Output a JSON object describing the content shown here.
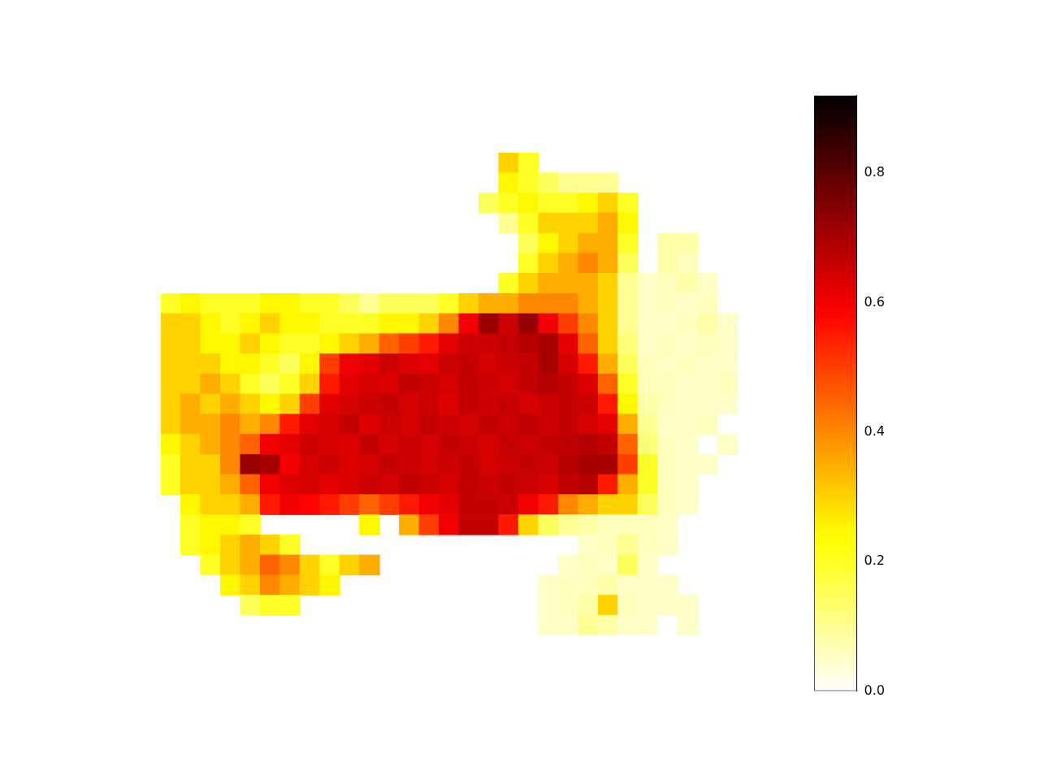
{
  "chart_data": {
    "type": "heatmap",
    "cells": [
      [
        null,
        null,
        null,
        null,
        null,
        null,
        null,
        null,
        null,
        null,
        null,
        null,
        null,
        null,
        null,
        null,
        null,
        0.3,
        0.2,
        null,
        null,
        null,
        null,
        null,
        null,
        null,
        null,
        null,
        null,
        null
      ],
      [
        null,
        null,
        null,
        null,
        null,
        null,
        null,
        null,
        null,
        null,
        null,
        null,
        null,
        null,
        null,
        null,
        null,
        0.25,
        0.2,
        0.15,
        0.1,
        0.1,
        0.1,
        null,
        null,
        null,
        null,
        null,
        null,
        null
      ],
      [
        null,
        null,
        null,
        null,
        null,
        null,
        null,
        null,
        null,
        null,
        null,
        null,
        null,
        null,
        null,
        null,
        0.15,
        0.2,
        0.25,
        0.2,
        0.2,
        0.25,
        0.3,
        0.2,
        null,
        null,
        null,
        null,
        null,
        null
      ],
      [
        null,
        null,
        null,
        null,
        null,
        null,
        null,
        null,
        null,
        null,
        null,
        null,
        null,
        null,
        null,
        null,
        null,
        0.1,
        0.2,
        0.3,
        0.3,
        0.3,
        0.35,
        0.25,
        null,
        null,
        null,
        null,
        null,
        null
      ],
      [
        null,
        null,
        null,
        null,
        null,
        null,
        null,
        null,
        null,
        null,
        null,
        null,
        null,
        null,
        null,
        null,
        null,
        null,
        0.15,
        0.25,
        0.3,
        0.35,
        0.35,
        0.2,
        null,
        0.08,
        0.08,
        null,
        null,
        null
      ],
      [
        null,
        null,
        null,
        null,
        null,
        null,
        null,
        null,
        null,
        null,
        null,
        null,
        null,
        null,
        null,
        null,
        null,
        null,
        0.2,
        0.3,
        0.35,
        0.4,
        0.35,
        0.15,
        null,
        0.08,
        0.06,
        null,
        null,
        null
      ],
      [
        null,
        null,
        null,
        null,
        null,
        null,
        null,
        null,
        null,
        null,
        null,
        null,
        null,
        null,
        null,
        null,
        null,
        0.2,
        0.3,
        0.35,
        0.35,
        0.35,
        0.3,
        0.1,
        0.05,
        0.06,
        0.08,
        0.05,
        null,
        null
      ],
      [
        0.2,
        0.25,
        0.2,
        0.2,
        0.2,
        0.25,
        0.25,
        0.2,
        0.2,
        0.15,
        0.1,
        0.15,
        0.15,
        0.15,
        0.2,
        0.3,
        0.35,
        0.35,
        0.4,
        0.4,
        0.4,
        0.35,
        0.3,
        0.1,
        0.05,
        0.06,
        0.05,
        0.06,
        null,
        null
      ],
      [
        0.3,
        0.3,
        0.25,
        0.2,
        0.25,
        0.3,
        0.25,
        0.25,
        0.2,
        0.2,
        0.2,
        0.25,
        0.25,
        0.3,
        0.4,
        0.6,
        0.72,
        0.65,
        0.72,
        0.6,
        0.5,
        0.4,
        0.3,
        0.1,
        0.05,
        0.05,
        0.06,
        0.08,
        0.05,
        null
      ],
      [
        0.3,
        0.3,
        0.25,
        0.25,
        0.3,
        0.25,
        0.2,
        0.2,
        0.25,
        0.3,
        0.35,
        0.45,
        0.5,
        0.55,
        0.62,
        0.65,
        0.65,
        0.66,
        0.68,
        0.7,
        0.62,
        0.45,
        0.3,
        0.12,
        0.05,
        0.06,
        0.05,
        0.06,
        0.05,
        null
      ],
      [
        0.3,
        0.3,
        0.3,
        0.25,
        0.25,
        0.2,
        0.15,
        0.25,
        0.5,
        0.6,
        0.62,
        0.65,
        0.63,
        0.62,
        0.65,
        0.66,
        0.64,
        0.65,
        0.66,
        0.7,
        0.64,
        0.55,
        0.35,
        0.15,
        0.06,
        0.05,
        0.06,
        0.05,
        0.05,
        null
      ],
      [
        0.3,
        0.3,
        0.35,
        0.3,
        0.2,
        0.15,
        0.2,
        0.3,
        0.55,
        0.62,
        0.64,
        0.63,
        0.66,
        0.65,
        0.64,
        0.66,
        0.65,
        0.64,
        0.66,
        0.68,
        0.66,
        0.63,
        0.45,
        0.2,
        0.06,
        0.06,
        0.05,
        0.05,
        0.06,
        null
      ],
      [
        0.3,
        0.35,
        0.3,
        0.35,
        0.3,
        0.25,
        0.3,
        0.5,
        0.62,
        0.64,
        0.65,
        0.66,
        0.64,
        0.65,
        0.63,
        0.66,
        0.65,
        0.66,
        0.64,
        0.65,
        0.66,
        0.65,
        0.55,
        0.25,
        0.08,
        0.06,
        0.05,
        0.05,
        0.05,
        null
      ],
      [
        0.3,
        0.35,
        0.35,
        0.4,
        0.35,
        0.4,
        0.55,
        0.62,
        0.64,
        0.66,
        0.63,
        0.65,
        0.64,
        0.66,
        0.65,
        0.64,
        0.66,
        0.65,
        0.67,
        0.65,
        0.66,
        0.64,
        0.62,
        0.35,
        0.1,
        0.05,
        0.05,
        0.06,
        null,
        null
      ],
      [
        0.25,
        0.3,
        0.35,
        0.4,
        0.45,
        0.6,
        0.62,
        0.65,
        0.64,
        0.63,
        0.66,
        0.64,
        0.65,
        0.64,
        0.66,
        0.65,
        0.64,
        0.66,
        0.65,
        0.66,
        0.67,
        0.68,
        0.66,
        0.45,
        0.12,
        0.06,
        0.05,
        null,
        0.05,
        null
      ],
      [
        0.2,
        0.3,
        0.3,
        0.4,
        0.72,
        0.7,
        0.6,
        0.64,
        0.65,
        0.63,
        0.64,
        0.66,
        0.65,
        0.64,
        0.65,
        0.66,
        0.64,
        0.65,
        0.66,
        0.65,
        0.68,
        0.7,
        0.7,
        0.5,
        0.2,
        0.06,
        0.05,
        0.05,
        null,
        null
      ],
      [
        0.2,
        0.3,
        0.3,
        0.35,
        0.45,
        0.6,
        0.63,
        0.64,
        0.62,
        0.63,
        0.65,
        0.64,
        0.66,
        0.65,
        0.64,
        0.66,
        0.65,
        0.66,
        0.65,
        0.64,
        0.66,
        0.68,
        0.55,
        0.35,
        0.2,
        0.06,
        0.05,
        null,
        null,
        null
      ],
      [
        null,
        0.25,
        0.3,
        0.3,
        0.35,
        0.55,
        0.6,
        0.58,
        0.55,
        0.5,
        0.45,
        0.5,
        0.55,
        0.6,
        0.62,
        0.66,
        0.66,
        0.65,
        0.6,
        0.55,
        0.4,
        0.35,
        0.3,
        0.3,
        0.15,
        0.06,
        0.05,
        null,
        null,
        null
      ],
      [
        null,
        0.2,
        0.25,
        0.25,
        0.2,
        null,
        null,
        null,
        null,
        null,
        0.25,
        null,
        0.35,
        0.5,
        0.6,
        0.66,
        0.66,
        0.55,
        0.3,
        0.15,
        0.1,
        0.08,
        0.06,
        0.06,
        0.06,
        0.05,
        null,
        null,
        null,
        null
      ],
      [
        null,
        0.2,
        0.25,
        0.3,
        0.35,
        0.3,
        0.2,
        null,
        null,
        null,
        null,
        null,
        null,
        null,
        null,
        null,
        null,
        null,
        null,
        null,
        null,
        0.05,
        0.06,
        0.1,
        0.06,
        0.05,
        null,
        null,
        null,
        null
      ],
      [
        null,
        null,
        0.2,
        0.3,
        0.35,
        0.45,
        0.4,
        0.3,
        0.2,
        0.3,
        0.35,
        null,
        null,
        null,
        null,
        null,
        null,
        null,
        null,
        null,
        0.05,
        0.06,
        0.05,
        0.15,
        0.05,
        null,
        null,
        null,
        null,
        null
      ],
      [
        null,
        null,
        null,
        0.25,
        0.3,
        0.4,
        0.35,
        0.3,
        0.25,
        null,
        null,
        null,
        null,
        null,
        null,
        null,
        null,
        null,
        null,
        0.05,
        0.06,
        0.06,
        0.08,
        0.05,
        0.05,
        0.05,
        null,
        null,
        null,
        null
      ],
      [
        null,
        null,
        null,
        null,
        0.15,
        0.2,
        0.2,
        null,
        null,
        null,
        null,
        null,
        null,
        null,
        null,
        null,
        null,
        null,
        null,
        0.05,
        0.06,
        0.08,
        0.3,
        0.06,
        0.05,
        0.05,
        0.05,
        null,
        null,
        null
      ],
      [
        null,
        null,
        null,
        null,
        null,
        null,
        null,
        null,
        null,
        null,
        null,
        null,
        null,
        null,
        null,
        null,
        null,
        null,
        null,
        0.05,
        0.05,
        0.1,
        0.08,
        0.05,
        0.05,
        null,
        0.05,
        null,
        null,
        null
      ]
    ],
    "colorbar_range": [
      0,
      0.92
    ],
    "colorbar_ticks": [
      {
        "value": 0,
        "label": "0.0"
      },
      {
        "value": 0.2,
        "label": "0.2"
      },
      {
        "value": 0.4,
        "label": "0.4"
      },
      {
        "value": 0.6,
        "label": "0.6"
      },
      {
        "value": 0.8,
        "label": "0.8"
      }
    ]
  }
}
